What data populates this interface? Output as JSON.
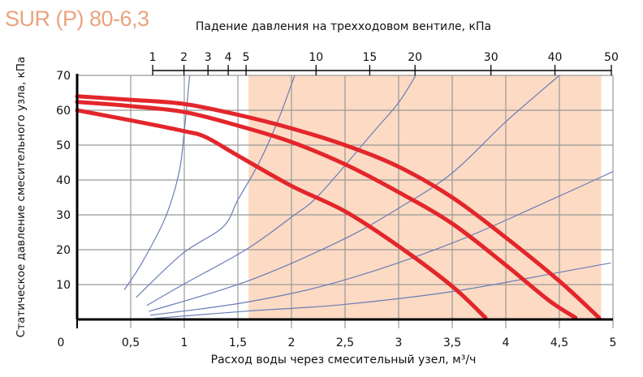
{
  "title": "SUR (P) 80-6,3",
  "colors": {
    "title": "#eaa37e",
    "shade": "#fcdac3",
    "pump_curve": "#e3262b",
    "system_curve": "#6a7cb8",
    "grid": "#999999"
  },
  "chart_data": {
    "type": "line",
    "xlabel": "Расход воды через смесительный узел, м³/ч",
    "ylabel": "Статическое давление смесительного узла, кПа",
    "top_axis_label": "Падение давления на трехходовом вентиле, кПа",
    "xlim": [
      0,
      5
    ],
    "ylim": [
      0,
      70
    ],
    "grid": true,
    "x_ticks": [
      "0",
      "0,5",
      "1",
      "1,5",
      "2",
      "2,5",
      "3",
      "3,5",
      "4",
      "4,5",
      "5"
    ],
    "y_ticks": [
      "10",
      "20",
      "30",
      "40",
      "50",
      "60",
      "70"
    ],
    "top_ticks": [
      "1",
      "2",
      "3",
      "4",
      "5",
      "10",
      "15",
      "20",
      "30",
      "40",
      "50"
    ],
    "shaded_range": [
      1.6,
      4.89
    ],
    "pump_curves": [
      {
        "points": [
          [
            0,
            64
          ],
          [
            0.5,
            63
          ],
          [
            1,
            61.8
          ],
          [
            1.5,
            58.7
          ],
          [
            2,
            54.8
          ],
          [
            2.5,
            50
          ],
          [
            3,
            43.8
          ],
          [
            3.5,
            35
          ],
          [
            4,
            23.5
          ],
          [
            4.5,
            11
          ],
          [
            4.87,
            0.5
          ]
        ]
      },
      {
        "points": [
          [
            0,
            62.4
          ],
          [
            0.5,
            61.2
          ],
          [
            1,
            59.5
          ],
          [
            1.5,
            55.6
          ],
          [
            2,
            50.9
          ],
          [
            2.5,
            44.5
          ],
          [
            3,
            36.5
          ],
          [
            3.5,
            27.5
          ],
          [
            4,
            15.6
          ],
          [
            4.4,
            5.5
          ],
          [
            4.65,
            0.5
          ]
        ]
      },
      {
        "points": [
          [
            0,
            60
          ],
          [
            0.5,
            57.1
          ],
          [
            1,
            54
          ],
          [
            1.2,
            52.3
          ],
          [
            1.5,
            47
          ],
          [
            2,
            38.3
          ],
          [
            2.5,
            31
          ],
          [
            3,
            21
          ],
          [
            3.5,
            9.5
          ],
          [
            3.81,
            0.5
          ]
        ]
      }
    ],
    "system_curves": [
      {
        "points": [
          [
            0.44,
            8.5
          ],
          [
            0.6,
            16
          ],
          [
            0.82,
            29
          ],
          [
            0.95,
            42
          ],
          [
            1.0,
            54
          ],
          [
            1.05,
            70
          ]
        ]
      },
      {
        "points": [
          [
            0.55,
            6.3
          ],
          [
            0.98,
            18.8
          ],
          [
            1.36,
            26.5
          ],
          [
            1.5,
            34.3
          ],
          [
            1.7,
            45.1
          ],
          [
            1.88,
            57.5
          ],
          [
            2.03,
            70
          ]
        ]
      },
      {
        "points": [
          [
            0.65,
            4
          ],
          [
            1.0,
            10.2
          ],
          [
            1.59,
            20.3
          ],
          [
            2.01,
            29.6
          ],
          [
            2.26,
            35.8
          ],
          [
            2.76,
            53.6
          ],
          [
            3.0,
            62.2
          ],
          [
            3.16,
            70
          ]
        ]
      },
      {
        "points": [
          [
            0.67,
            2.3
          ],
          [
            1.59,
            11
          ],
          [
            2.46,
            22.6
          ],
          [
            3.0,
            31.9
          ],
          [
            3.5,
            42
          ],
          [
            4.0,
            56.7
          ],
          [
            4.5,
            70
          ]
        ]
      },
      {
        "points": [
          [
            0.68,
            1.2
          ],
          [
            1.59,
            5
          ],
          [
            2.46,
            11
          ],
          [
            3.5,
            21.9
          ],
          [
            4.5,
            35.4
          ],
          [
            5.0,
            42.4
          ]
        ]
      },
      {
        "points": [
          [
            0.72,
            0.3
          ],
          [
            1.59,
            2.4
          ],
          [
            2.46,
            4.2
          ],
          [
            3.5,
            8
          ],
          [
            4.5,
            13.5
          ],
          [
            4.98,
            16.2
          ]
        ]
      }
    ]
  }
}
